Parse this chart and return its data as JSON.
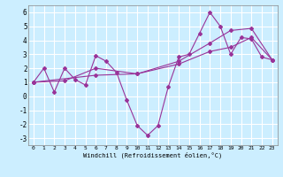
{
  "xlabel": "Windchill (Refroidissement éolien,°C)",
  "background_color": "#cceeff",
  "grid_color": "#ffffff",
  "line_color": "#993399",
  "xlim": [
    -0.5,
    23.5
  ],
  "ylim": [
    -3.5,
    6.5
  ],
  "yticks": [
    -3,
    -2,
    -1,
    0,
    1,
    2,
    3,
    4,
    5,
    6
  ],
  "xticks": [
    0,
    1,
    2,
    3,
    4,
    5,
    6,
    7,
    8,
    9,
    10,
    11,
    12,
    13,
    14,
    15,
    16,
    17,
    18,
    19,
    20,
    21,
    22,
    23
  ],
  "line1_x": [
    0,
    1,
    2,
    3,
    4,
    5,
    6,
    7,
    8,
    9,
    10,
    11,
    12,
    13,
    14,
    15,
    16,
    17,
    18,
    19,
    20,
    21,
    22,
    23
  ],
  "line1_y": [
    1.0,
    2.0,
    0.3,
    2.0,
    1.2,
    0.8,
    2.9,
    2.5,
    1.7,
    -0.3,
    -2.1,
    -2.8,
    -2.1,
    0.7,
    2.8,
    3.0,
    4.5,
    6.0,
    5.0,
    3.0,
    4.2,
    4.1,
    2.8,
    2.6
  ],
  "line2_x": [
    0,
    3,
    6,
    10,
    14,
    17,
    19,
    21,
    23
  ],
  "line2_y": [
    1.0,
    1.1,
    2.0,
    1.6,
    2.3,
    3.2,
    3.5,
    4.2,
    2.6
  ],
  "line3_x": [
    0,
    6,
    10,
    14,
    17,
    19,
    21,
    23
  ],
  "line3_y": [
    1.0,
    1.5,
    1.6,
    2.5,
    3.8,
    4.7,
    4.85,
    2.6
  ]
}
